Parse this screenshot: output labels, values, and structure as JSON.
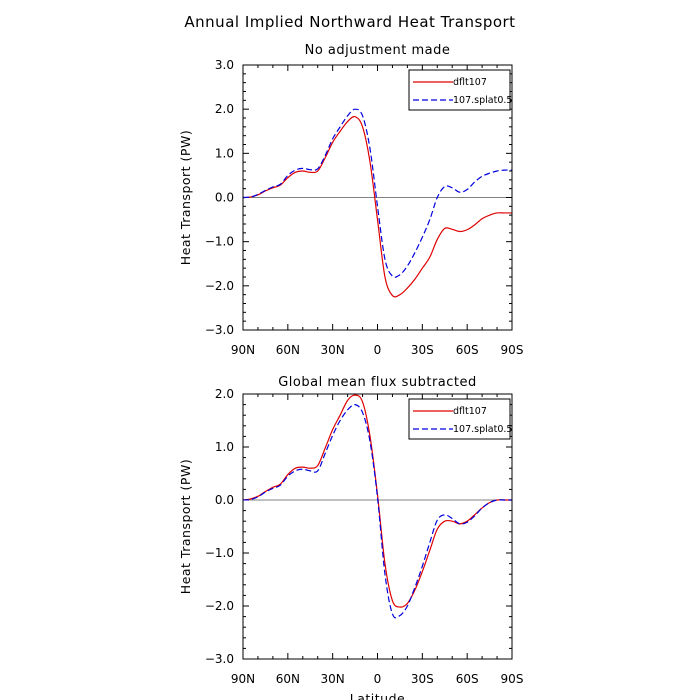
{
  "figure_title": "Annual Implied Northward Heat Transport",
  "colors": {
    "series1": "#e00000",
    "series2": "#0000e0",
    "zero_line": "#808080",
    "axis": "#000000"
  },
  "chart_data": [
    {
      "type": "line",
      "title": "No adjustment made",
      "xlabel": "",
      "ylabel": "Heat Transport (PW)",
      "xlim": [
        -90,
        90
      ],
      "ylim": [
        -3,
        3
      ],
      "x_ticks": [
        -90,
        -60,
        -30,
        0,
        30,
        60,
        90
      ],
      "x_tick_labels": [
        "90N",
        "60N",
        "30N",
        "0",
        "30S",
        "60S",
        "90S"
      ],
      "y_ticks": [
        -3,
        -2,
        -1,
        0,
        1,
        2,
        3
      ],
      "y_tick_labels": [
        "−3.0",
        "−2.0",
        "−1.0",
        "0.0",
        "1.0",
        "2.0",
        "3.0"
      ],
      "legend_position": "top-right",
      "series": [
        {
          "name": "dflt107",
          "style": "solid",
          "x": [
            -90,
            -85,
            -80,
            -75,
            -70,
            -65,
            -60,
            -55,
            -50,
            -45,
            -40,
            -35,
            -30,
            -25,
            -20,
            -15,
            -10,
            -5,
            0,
            5,
            10,
            15,
            20,
            25,
            30,
            35,
            40,
            45,
            50,
            55,
            60,
            65,
            70,
            75,
            80,
            85,
            90
          ],
          "y": [
            0,
            0.01,
            0.06,
            0.15,
            0.22,
            0.28,
            0.45,
            0.57,
            0.6,
            0.57,
            0.6,
            0.9,
            1.25,
            1.5,
            1.72,
            1.83,
            1.6,
            0.8,
            -0.5,
            -1.8,
            -2.22,
            -2.2,
            -2.05,
            -1.85,
            -1.6,
            -1.35,
            -0.95,
            -0.7,
            -0.72,
            -0.77,
            -0.73,
            -0.62,
            -0.48,
            -0.4,
            -0.35,
            -0.35,
            -0.35
          ]
        },
        {
          "name": "107.splat0.5",
          "style": "dashed",
          "x": [
            -90,
            -85,
            -80,
            -75,
            -70,
            -65,
            -60,
            -55,
            -50,
            -45,
            -40,
            -35,
            -30,
            -25,
            -20,
            -15,
            -10,
            -5,
            0,
            5,
            10,
            15,
            20,
            25,
            30,
            35,
            40,
            45,
            50,
            55,
            60,
            65,
            70,
            75,
            80,
            85,
            90
          ],
          "y": [
            0,
            0.01,
            0.07,
            0.16,
            0.24,
            0.3,
            0.5,
            0.62,
            0.66,
            0.63,
            0.65,
            0.95,
            1.33,
            1.6,
            1.85,
            2.0,
            1.85,
            1.1,
            -0.2,
            -1.4,
            -1.78,
            -1.75,
            -1.55,
            -1.25,
            -0.9,
            -0.5,
            0.0,
            0.25,
            0.22,
            0.12,
            0.18,
            0.35,
            0.48,
            0.55,
            0.6,
            0.62,
            0.62
          ]
        }
      ]
    },
    {
      "type": "line",
      "title": "Global mean flux subtracted",
      "xlabel": "Latitude",
      "ylabel": "Heat Transport (PW)",
      "xlim": [
        -90,
        90
      ],
      "ylim": [
        -3,
        2
      ],
      "x_ticks": [
        -90,
        -60,
        -30,
        0,
        30,
        60,
        90
      ],
      "x_tick_labels": [
        "90N",
        "60N",
        "30N",
        "0",
        "30S",
        "60S",
        "90S"
      ],
      "y_ticks": [
        -3,
        -2,
        -1,
        0,
        1,
        2
      ],
      "y_tick_labels": [
        "−3.0",
        "−2.0",
        "−1.0",
        "0.0",
        "1.0",
        "2.0"
      ],
      "legend_position": "top-right",
      "series": [
        {
          "name": "dflt107",
          "style": "solid",
          "x": [
            -90,
            -85,
            -80,
            -75,
            -70,
            -65,
            -60,
            -55,
            -50,
            -45,
            -40,
            -35,
            -30,
            -25,
            -20,
            -15,
            -10,
            -5,
            0,
            5,
            10,
            15,
            20,
            25,
            30,
            35,
            40,
            45,
            50,
            55,
            60,
            65,
            70,
            75,
            80,
            85,
            90
          ],
          "y": [
            0,
            0.02,
            0.07,
            0.16,
            0.24,
            0.3,
            0.48,
            0.6,
            0.62,
            0.6,
            0.65,
            0.98,
            1.33,
            1.6,
            1.88,
            1.98,
            1.85,
            1.2,
            0.1,
            -1.2,
            -1.9,
            -2.02,
            -1.95,
            -1.7,
            -1.35,
            -0.95,
            -0.55,
            -0.4,
            -0.4,
            -0.45,
            -0.4,
            -0.28,
            -0.15,
            -0.05,
            0,
            0,
            0
          ]
        },
        {
          "name": "107.splat0.5",
          "style": "dashed",
          "x": [
            -90,
            -85,
            -80,
            -75,
            -70,
            -65,
            -60,
            -55,
            -50,
            -45,
            -40,
            -35,
            -30,
            -25,
            -20,
            -15,
            -10,
            -5,
            0,
            5,
            10,
            15,
            20,
            25,
            30,
            35,
            40,
            45,
            50,
            55,
            60,
            65,
            70,
            75,
            80,
            85,
            90
          ],
          "y": [
            0,
            0.01,
            0.06,
            0.15,
            0.22,
            0.28,
            0.45,
            0.55,
            0.58,
            0.55,
            0.55,
            0.88,
            1.22,
            1.5,
            1.7,
            1.8,
            1.65,
            1.1,
            0.05,
            -1.4,
            -2.15,
            -2.18,
            -2.0,
            -1.65,
            -1.25,
            -0.8,
            -0.38,
            -0.28,
            -0.35,
            -0.45,
            -0.42,
            -0.3,
            -0.15,
            -0.05,
            0,
            0,
            0
          ]
        }
      ]
    }
  ]
}
